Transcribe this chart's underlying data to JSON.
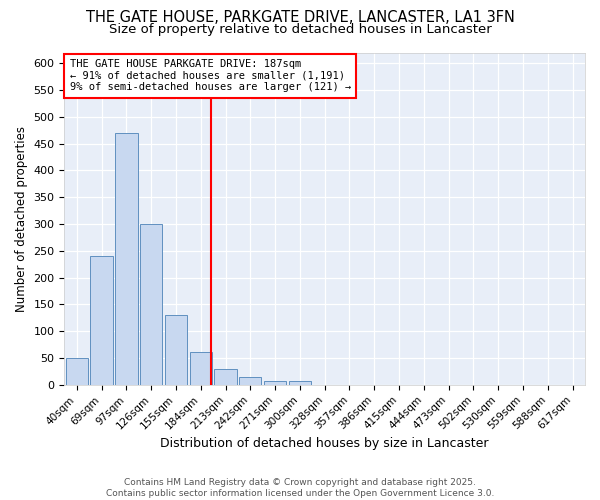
{
  "title": "THE GATE HOUSE, PARKGATE DRIVE, LANCASTER, LA1 3FN",
  "subtitle": "Size of property relative to detached houses in Lancaster",
  "xlabel": "Distribution of detached houses by size in Lancaster",
  "ylabel": "Number of detached properties",
  "categories": [
    "40sqm",
    "69sqm",
    "97sqm",
    "126sqm",
    "155sqm",
    "184sqm",
    "213sqm",
    "242sqm",
    "271sqm",
    "300sqm",
    "328sqm",
    "357sqm",
    "386sqm",
    "415sqm",
    "444sqm",
    "473sqm",
    "502sqm",
    "530sqm",
    "559sqm",
    "588sqm",
    "617sqm"
  ],
  "values": [
    50,
    240,
    470,
    300,
    130,
    62,
    30,
    15,
    8,
    8,
    0,
    0,
    0,
    0,
    0,
    0,
    0,
    0,
    0,
    0,
    0
  ],
  "bar_color": "#c8d8f0",
  "bar_edge_color": "#6090c0",
  "highlight_index": 5,
  "highlight_line_color": "#ff0000",
  "annotation_text": "THE GATE HOUSE PARKGATE DRIVE: 187sqm\n← 91% of detached houses are smaller (1,191)\n9% of semi-detached houses are larger (121) →",
  "annotation_box_color": "#ffffff",
  "annotation_box_edge": "#ff0000",
  "footnote": "Contains HM Land Registry data © Crown copyright and database right 2025.\nContains public sector information licensed under the Open Government Licence 3.0.",
  "ylim": [
    0,
    620
  ],
  "yticks": [
    0,
    50,
    100,
    150,
    200,
    250,
    300,
    350,
    400,
    450,
    500,
    550,
    600
  ],
  "bg_color": "#e8eef8",
  "fig_bg_color": "#ffffff",
  "title_fontsize": 10.5,
  "subtitle_fontsize": 9.5,
  "xlabel_fontsize": 9,
  "ylabel_fontsize": 8.5
}
